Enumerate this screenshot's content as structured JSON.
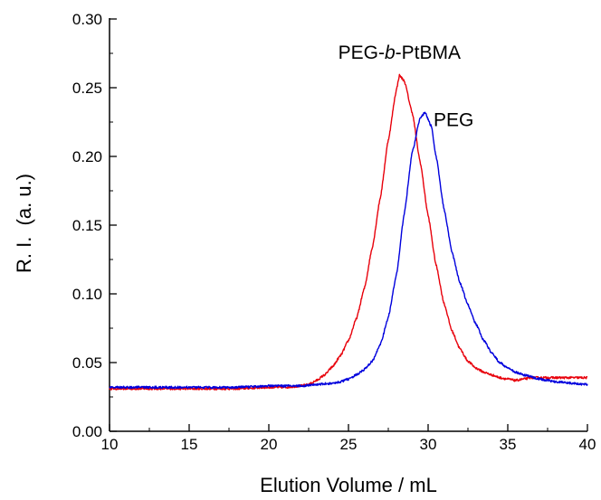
{
  "chart_data": {
    "type": "line",
    "xlabel": "Elution Volume / mL",
    "ylabel": "R. I.  (a. u.)",
    "xlim": [
      10,
      40
    ],
    "ylim": [
      0.0,
      0.3
    ],
    "x_ticks": [
      "10",
      "15",
      "20",
      "25",
      "30",
      "35",
      "40"
    ],
    "y_ticks": [
      "0.00",
      "0.05",
      "0.10",
      "0.15",
      "0.20",
      "0.25",
      "0.30"
    ],
    "grid": false,
    "legend": "none",
    "series": [
      {
        "name": "PEG-b-PtBMA",
        "label_prefix": "PEG-",
        "label_italic": "b",
        "label_suffix": "-PtBMA",
        "label_at": [
          28.2,
          0.271
        ],
        "color": "#e8000b",
        "x": [
          10,
          12,
          14,
          16,
          18,
          20,
          21,
          22,
          22.5,
          23,
          23.5,
          24,
          24.5,
          25,
          25.5,
          26,
          26.5,
          27,
          27.5,
          28,
          28.2,
          28.5,
          29,
          29.5,
          30,
          30.5,
          31,
          31.5,
          32,
          32.5,
          33,
          33.5,
          34,
          34.5,
          35,
          35.5,
          36,
          36.5,
          37,
          38,
          39,
          40
        ],
        "y": [
          0.031,
          0.031,
          0.031,
          0.031,
          0.031,
          0.032,
          0.032,
          0.033,
          0.034,
          0.037,
          0.041,
          0.047,
          0.055,
          0.066,
          0.082,
          0.104,
          0.134,
          0.17,
          0.212,
          0.248,
          0.259,
          0.255,
          0.232,
          0.196,
          0.157,
          0.121,
          0.093,
          0.073,
          0.06,
          0.051,
          0.046,
          0.043,
          0.041,
          0.039,
          0.038,
          0.037,
          0.038,
          0.039,
          0.039,
          0.039,
          0.039,
          0.039
        ]
      },
      {
        "name": "PEG",
        "label_at": [
          31.6,
          0.222
        ],
        "color": "#0000dd",
        "x": [
          10,
          12,
          14,
          16,
          18,
          20,
          22,
          23,
          24,
          24.5,
          25,
          25.5,
          26,
          26.5,
          27,
          27.5,
          28,
          28.5,
          29,
          29.5,
          29.8,
          30.2,
          30.5,
          31,
          31.5,
          32,
          32.5,
          33,
          33.5,
          34,
          34.5,
          35,
          35.5,
          36,
          37,
          38,
          39,
          40
        ],
        "y": [
          0.032,
          0.032,
          0.032,
          0.032,
          0.032,
          0.033,
          0.033,
          0.034,
          0.035,
          0.036,
          0.038,
          0.041,
          0.045,
          0.051,
          0.063,
          0.083,
          0.113,
          0.158,
          0.203,
          0.228,
          0.232,
          0.222,
          0.2,
          0.162,
          0.13,
          0.108,
          0.092,
          0.078,
          0.066,
          0.057,
          0.05,
          0.046,
          0.043,
          0.041,
          0.038,
          0.036,
          0.035,
          0.034
        ]
      }
    ]
  }
}
